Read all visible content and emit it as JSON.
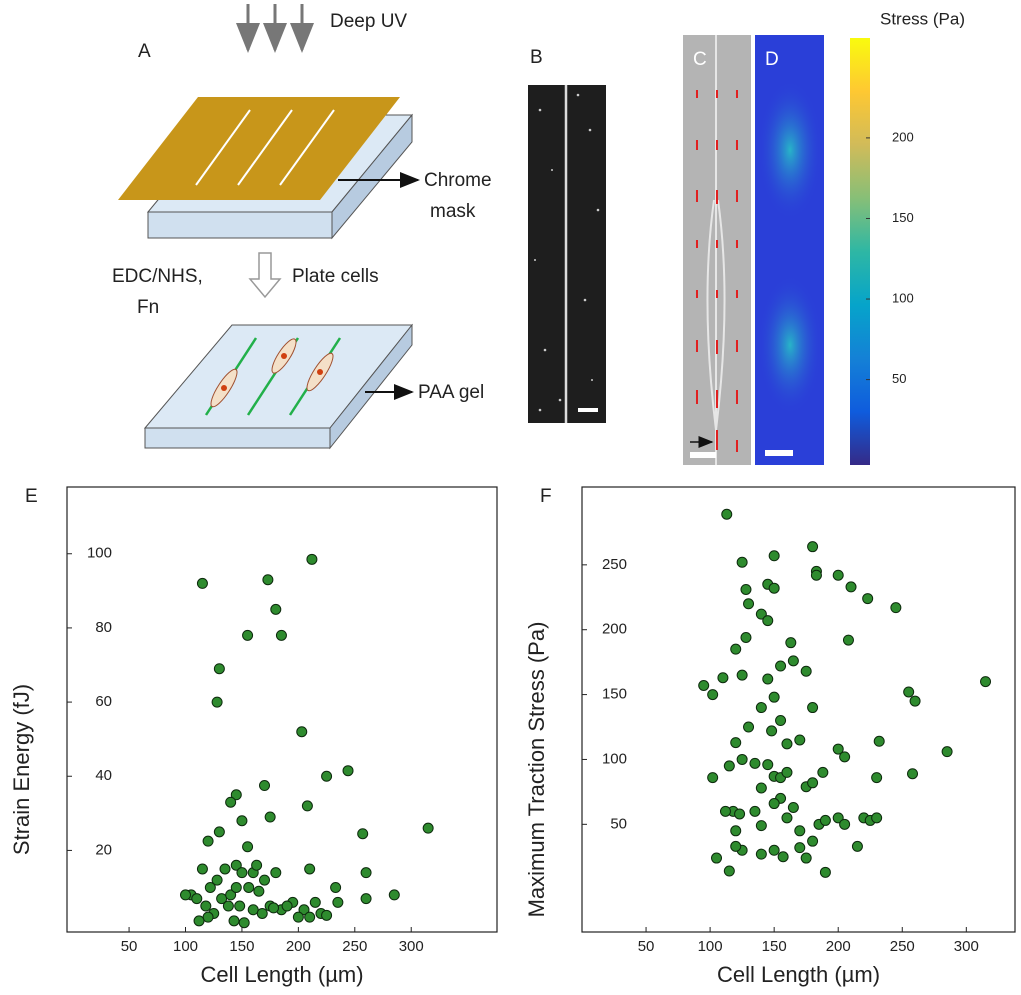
{
  "panels": {
    "A": {
      "label": "A",
      "uv": "Deep UV",
      "mask": [
        "Chrome",
        "mask"
      ],
      "chem": [
        "EDC/NHS,",
        "Fn"
      ],
      "plate": "Plate cells",
      "gel": "PAA gel"
    },
    "B": {
      "label": "B"
    },
    "C": {
      "label": "C"
    },
    "D": {
      "label": "D"
    }
  },
  "chart_data": [
    {
      "type": "colorbar",
      "title": "Stress (Pa)",
      "ylim": [
        -3,
        262
      ],
      "yticks": [
        50,
        100,
        150,
        200
      ],
      "colors": [
        "#352a87",
        "#0f5cdd",
        "#1481d6",
        "#06a4ca",
        "#2eb7a4",
        "#87bf77",
        "#d1bb59",
        "#fec832",
        "#f9fb0e"
      ]
    },
    {
      "type": "scatter",
      "label": "E",
      "xlabel": "Cell Length (µm)",
      "ylabel": "Strain Energy (fJ)",
      "xlim": [
        -5,
        376
      ],
      "ylim": [
        -2,
        118
      ],
      "xticks": [
        50,
        100,
        150,
        200,
        250,
        300
      ],
      "yticks": [
        20,
        40,
        60,
        80,
        100
      ],
      "color": "#2e8b2e",
      "x": [
        115,
        173,
        212,
        180,
        185,
        155,
        130,
        128,
        203,
        244,
        225,
        170,
        145,
        140,
        208,
        130,
        120,
        257,
        315,
        155,
        175,
        150,
        145,
        150,
        160,
        115,
        105,
        100,
        110,
        118,
        125,
        120,
        132,
        140,
        148,
        156,
        165,
        160,
        175,
        185,
        195,
        205,
        210,
        220,
        225,
        233,
        235,
        260,
        260,
        285,
        210,
        200,
        190,
        180,
        170,
        163,
        135,
        128,
        122,
        112,
        143,
        152,
        168,
        178,
        215,
        145,
        138
      ],
      "values": [
        92,
        93,
        98.5,
        85,
        78,
        78,
        69,
        60,
        52,
        41.5,
        40,
        37.5,
        35,
        33,
        32,
        25,
        22.5,
        24.5,
        26,
        21,
        29,
        28,
        16,
        14,
        14,
        15,
        8,
        8,
        7,
        5,
        3,
        2,
        7,
        8,
        5,
        10,
        9,
        4,
        5,
        4,
        6,
        4,
        15,
        3,
        2.5,
        10,
        6,
        14,
        7,
        8,
        2,
        2,
        5,
        14,
        12,
        16,
        15,
        12,
        10,
        1,
        1,
        0.5,
        3,
        4.5,
        6,
        10,
        5
      ]
    },
    {
      "type": "scatter",
      "label": "F",
      "xlabel": "Cell Length (µm)",
      "ylabel": "Maximum Traction  Stress (Pa)",
      "xlim": [
        0,
        338
      ],
      "ylim": [
        -33,
        310
      ],
      "xticks": [
        50,
        100,
        150,
        200,
        250,
        300
      ],
      "yticks": [
        50,
        100,
        150,
        200,
        250
      ],
      "color": "#2e8b2e",
      "x": [
        113,
        125,
        150,
        180,
        183,
        183,
        200,
        210,
        223,
        245,
        128,
        130,
        145,
        150,
        140,
        145,
        163,
        208,
        128,
        120,
        95,
        102,
        110,
        125,
        145,
        155,
        165,
        175,
        180,
        255,
        260,
        315,
        285,
        232,
        200,
        205,
        230,
        258,
        120,
        130,
        140,
        150,
        148,
        155,
        160,
        170,
        175,
        180,
        188,
        102,
        115,
        125,
        135,
        145,
        150,
        155,
        160,
        165,
        155,
        150,
        140,
        118,
        123,
        120,
        125,
        120,
        140,
        150,
        157,
        170,
        175,
        190,
        105,
        115,
        185,
        190,
        200,
        220,
        225,
        215,
        230,
        205,
        180,
        170,
        160,
        135,
        140,
        112
      ],
      "values": [
        289,
        252,
        257,
        264,
        245,
        242,
        242,
        233,
        224,
        217,
        231,
        220,
        235,
        232,
        212,
        207,
        190,
        192,
        194,
        185,
        157,
        150,
        163,
        165,
        162,
        172,
        176,
        168,
        140,
        152,
        145,
        160,
        106,
        114,
        108,
        102,
        86,
        89,
        113,
        125,
        140,
        148,
        122,
        130,
        112,
        115,
        79,
        82,
        90,
        86,
        95,
        100,
        97,
        96,
        87,
        86,
        90,
        63,
        70,
        66,
        78,
        60,
        58,
        45,
        30,
        33,
        27,
        30,
        25,
        32,
        24,
        13,
        24,
        14,
        50,
        53,
        55,
        55,
        53,
        33,
        55,
        50,
        37,
        45,
        55,
        60,
        49,
        60
      ]
    }
  ]
}
